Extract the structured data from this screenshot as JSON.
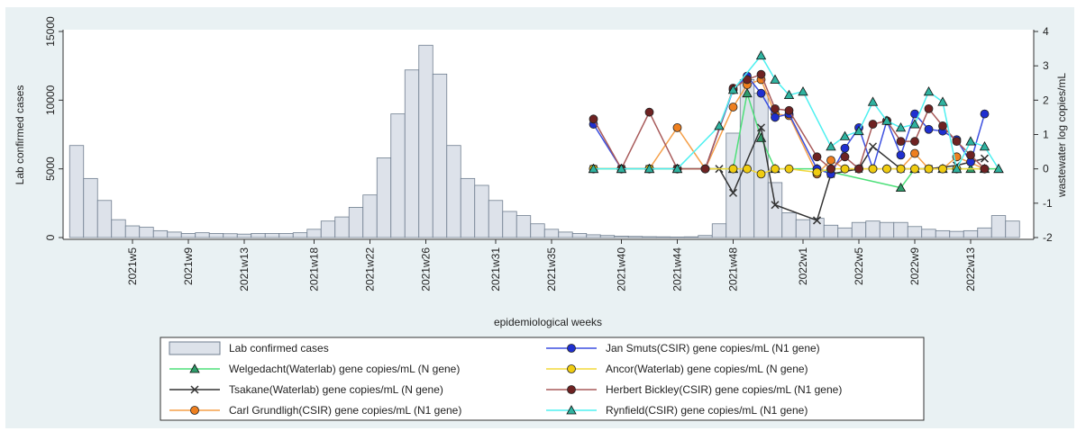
{
  "chart_data": {
    "type": "combo",
    "x_label": "epidemiological weeks",
    "y_label": "Lab confirmed cases",
    "y2_label": "wastewater log copies/mL",
    "categories": [
      null,
      null,
      null,
      null,
      "2021w5",
      null,
      null,
      null,
      "2021w9",
      null,
      null,
      null,
      "2021w13",
      null,
      null,
      null,
      null,
      "2021w18",
      null,
      null,
      null,
      "2021w22",
      null,
      null,
      null,
      "2021w26",
      null,
      null,
      null,
      null,
      "2021w31",
      null,
      null,
      null,
      "2021w35",
      null,
      null,
      null,
      null,
      "2021w40",
      null,
      null,
      null,
      "2021w44",
      null,
      null,
      null,
      "2021w48",
      null,
      null,
      null,
      null,
      "2022w1",
      null,
      null,
      null,
      "2022w5",
      null,
      null,
      null,
      "2022w9",
      null,
      null,
      null,
      "2022w13",
      null,
      null,
      null
    ],
    "ylim": [
      0,
      15000
    ],
    "yticks": [
      0,
      5000,
      10000,
      15000
    ],
    "y2lim": [
      -2,
      4
    ],
    "y2ticks": [
      -2,
      -1,
      0,
      1,
      2,
      3,
      4
    ],
    "series": [
      {
        "name": "Lab confirmed cases",
        "type": "bar",
        "color": "#dde2ea",
        "values": [
          6700,
          4300,
          2700,
          1300,
          850,
          750,
          500,
          400,
          300,
          350,
          300,
          280,
          250,
          300,
          300,
          300,
          350,
          600,
          1200,
          1500,
          2200,
          3100,
          5800,
          9000,
          12200,
          14000,
          11900,
          6700,
          4300,
          3800,
          2700,
          1900,
          1600,
          1000,
          600,
          400,
          300,
          200,
          150,
          100,
          80,
          60,
          50,
          40,
          50,
          150,
          1000,
          7600,
          11500,
          10500,
          4000,
          1800,
          1300,
          1400,
          900,
          700,
          1100,
          1200,
          1100,
          1100,
          800,
          600,
          500,
          450,
          500,
          700,
          1600,
          1200
        ]
      },
      {
        "name": "Welgedacht(Waterlab) gene copies/mL (N gene)",
        "type": "line",
        "axis": "y2",
        "color": "#4ee07a",
        "marker": "triangle",
        "marker_color": "#2e9c6a",
        "x": [
          37,
          39,
          41,
          43,
          47,
          48,
          49,
          50,
          53,
          59,
          60,
          62,
          63,
          64,
          65,
          66
        ],
        "values": [
          0,
          0,
          0,
          0,
          0,
          2.2,
          0.9,
          0,
          0,
          -0.55,
          0,
          0,
          0,
          0,
          0,
          0
        ]
      },
      {
        "name": "Tsakane(Waterlab) gene copies/mL (N gene)",
        "type": "line",
        "axis": "y2",
        "color": "#333333",
        "marker": "x",
        "marker_color": "#333333",
        "x": [
          37,
          39,
          41,
          43,
          46,
          47,
          49,
          50,
          53,
          54,
          56,
          57,
          59,
          61,
          63,
          65
        ],
        "values": [
          0,
          0,
          0,
          0,
          0,
          -0.7,
          1.2,
          -1.05,
          -1.5,
          -0.15,
          0,
          0.65,
          0,
          0,
          0.1,
          0.3
        ]
      },
      {
        "name": "Carl Grundligh(CSIR) gene copies/mL (N1 gene)",
        "type": "line",
        "axis": "y2",
        "color": "#f5a04a",
        "marker": "circle",
        "marker_color": "#ee7f1f",
        "x": [
          37,
          39,
          41,
          43,
          45,
          47,
          48,
          49,
          50,
          51,
          53,
          54,
          55,
          56,
          57,
          58,
          59,
          60,
          61,
          62,
          63,
          65
        ],
        "values": [
          0,
          0,
          0,
          1.2,
          0,
          1.8,
          2.45,
          2.6,
          1.6,
          1.55,
          -0.15,
          0.25,
          0,
          0,
          0,
          0,
          0,
          0.45,
          0,
          0,
          0.35,
          0
        ]
      },
      {
        "name": "Jan Smuts(CSIR) gene copies/mL (N1 gene)",
        "type": "line",
        "axis": "y2",
        "color": "#3b4fe0",
        "marker": "circle",
        "marker_color": "#1f2fd0",
        "x": [
          37,
          39,
          41,
          43,
          45,
          47,
          48,
          49,
          50,
          51,
          53,
          54,
          55,
          56,
          57,
          58,
          59,
          60,
          61,
          62,
          63,
          64,
          65
        ],
        "values": [
          1.3,
          0,
          0,
          0,
          0,
          2.3,
          2.7,
          2.2,
          1.5,
          1.6,
          0,
          -0.15,
          0.6,
          1.2,
          0,
          1.4,
          0.4,
          1.6,
          1.15,
          1.1,
          0.85,
          0.2,
          1.6
        ]
      },
      {
        "name": "Ancor(Waterlab) gene copies/mL (N gene)",
        "type": "line",
        "axis": "y2",
        "color": "#f2d83a",
        "marker": "circle",
        "marker_color": "#f0cc10",
        "x": [
          37,
          39,
          41,
          43,
          45,
          47,
          48,
          49,
          50,
          51,
          53,
          54,
          55,
          56,
          57,
          58,
          59,
          60,
          61,
          62,
          63,
          65
        ],
        "values": [
          0,
          0,
          0,
          0,
          0,
          0,
          0,
          -0.15,
          0,
          0,
          -0.1,
          0,
          0,
          0,
          0,
          0,
          0,
          0,
          0,
          0,
          0,
          0
        ]
      },
      {
        "name": "Herbert Bickley(CSIR) gene copies/mL (N1 gene)",
        "type": "line",
        "axis": "y2",
        "color": "#a85a5a",
        "marker": "circle",
        "marker_color": "#6e2222",
        "x": [
          37,
          39,
          41,
          43,
          45,
          47,
          48,
          49,
          50,
          51,
          53,
          54,
          55,
          56,
          57,
          58,
          59,
          60,
          61,
          62,
          63,
          64,
          65
        ],
        "values": [
          1.45,
          0,
          1.65,
          0,
          0,
          2.35,
          2.6,
          2.75,
          1.75,
          1.7,
          0.35,
          0,
          0.35,
          0,
          1.3,
          1.4,
          0.8,
          0.8,
          1.75,
          1.25,
          0.8,
          0.4,
          0
        ]
      },
      {
        "name": "Rynfield(CSIR) gene copies/mL (N1 gene)",
        "type": "line",
        "axis": "y2",
        "color": "#4ff0f0",
        "marker": "triangle",
        "marker_color": "#2fb3a0",
        "x": [
          37,
          39,
          41,
          43,
          46,
          47,
          49,
          50,
          51,
          52,
          54,
          55,
          56,
          57,
          58,
          59,
          60,
          61,
          62,
          63,
          64,
          65,
          66
        ],
        "values": [
          0,
          0,
          0,
          0,
          1.25,
          2.3,
          3.3,
          2.6,
          2.15,
          2.25,
          0.65,
          0.95,
          1.1,
          1.95,
          1.4,
          1.2,
          1.3,
          2.25,
          1.95,
          0,
          0.8,
          0.65,
          0
        ]
      }
    ]
  }
}
